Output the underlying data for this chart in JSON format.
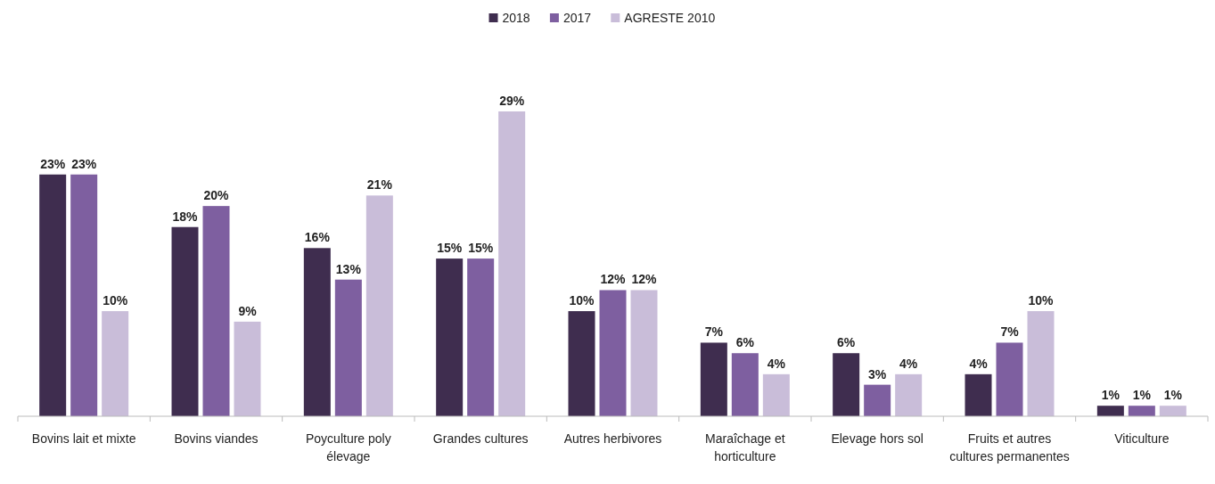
{
  "chart_data": {
    "type": "bar",
    "legend": "top",
    "categories": [
      "Bovins lait et mixte",
      "Bovins viandes",
      "Poyculture poly élevage",
      "Grandes cultures",
      "Autres herbivores",
      "Maraîchage et horticulture",
      "Elevage hors sol",
      "Fruits et autres cultures permanentes",
      "Viticulture"
    ],
    "series": [
      {
        "name": "2018",
        "color": "#3f2d4f",
        "values": [
          23,
          18,
          16,
          15,
          10,
          7,
          6,
          4,
          1
        ],
        "value_labels": [
          "23%",
          "18%",
          "16%",
          "15%",
          "10%",
          "7%",
          "6%",
          "4%",
          "1%"
        ]
      },
      {
        "name": "2017",
        "color": "#7e5fa0",
        "values": [
          23,
          20,
          13,
          15,
          12,
          6,
          3,
          7,
          1
        ],
        "value_labels": [
          "23%",
          "20%",
          "13%",
          "15%",
          "12%",
          "6%",
          "3%",
          "7%",
          "1%"
        ]
      },
      {
        "name": "AGRESTE 2010",
        "color": "#c9bdd9",
        "values": [
          10,
          9,
          21,
          29,
          12,
          4,
          4,
          10,
          1
        ],
        "value_labels": [
          "10%",
          "9%",
          "21%",
          "29%",
          "12%",
          "4%",
          "4%",
          "10%",
          "1%"
        ]
      }
    ]
  }
}
